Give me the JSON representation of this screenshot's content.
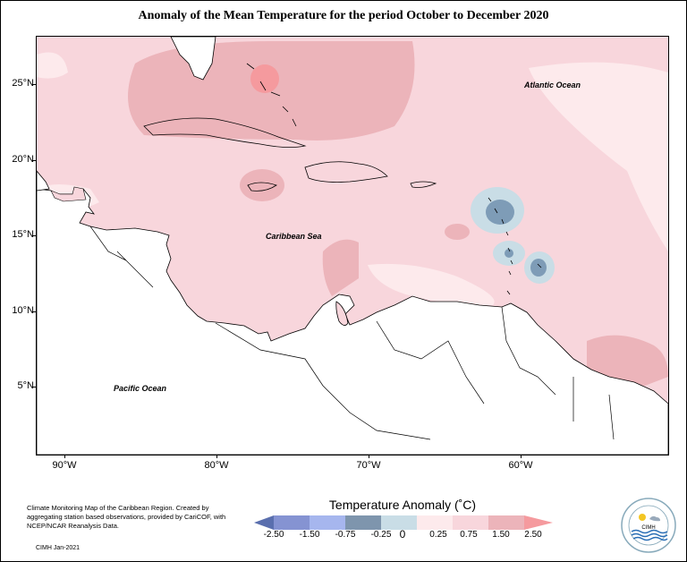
{
  "title": "Anomaly of the Mean Temperature for the period October to December 2020",
  "map": {
    "lat_labels": [
      "25°N",
      "20°N",
      "15°N",
      "10°N",
      "5°N"
    ],
    "lon_labels": [
      "90°W",
      "80°W",
      "70°W",
      "60°W"
    ],
    "annotations": {
      "atlantic": "Atlantic Ocean",
      "caribbean": "Caribbean Sea",
      "pacific": "Pacific Ocean"
    },
    "colors": {
      "anom_0_25": "#fdeaec",
      "anom_0_75": "#f8d6dc",
      "anom_1_50": "#ecb4ba",
      "anom_2_50": "#f59a9e",
      "neg_0_25": "#c9dde6",
      "neg_0_75": "#7e9cb7",
      "land": "#ffffff"
    }
  },
  "legend": {
    "title": "Temperature Anomaly (˚C)",
    "labels": [
      "-2.50",
      "-1.50",
      "-0.75",
      "-0.25",
      "0",
      "0.25",
      "0.75",
      "1.50",
      "2.50"
    ],
    "colors": [
      "#5a6fae",
      "#8593d2",
      "#a6b6ee",
      "#7e95ad",
      "#c9dde6",
      "#fdeaec",
      "#f8d6dc",
      "#ecb4ba",
      "#f59a9e"
    ]
  },
  "credit": {
    "text": "Climate Monitoring Map of the Caribbean Region. Created by aggregating station based observations, provided by CariCOF, with NCEP/NCAR Reanalysis Data.",
    "date": "CIMH Jan-2021"
  },
  "logo": {
    "name": "CIMH"
  }
}
